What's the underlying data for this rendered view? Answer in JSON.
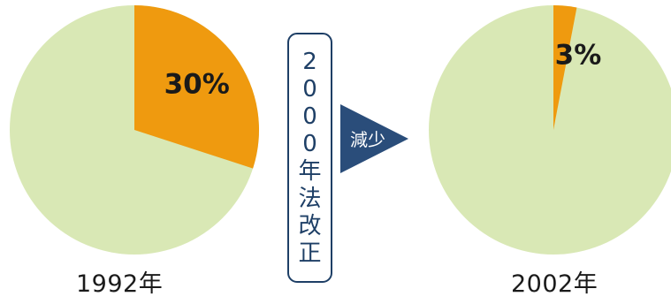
{
  "caption": {
    "law_revision": "2000年法改正",
    "change_label": "減少"
  },
  "colors": {
    "share": "#ef9a0f",
    "rest": "#d9e8b5",
    "arrow": "#2a4d7a",
    "text_dark": "#1a1a1a",
    "law_text": "#1e3f66"
  },
  "chart_data": [
    {
      "type": "pie",
      "xlabel": "1992年",
      "slices": [
        {
          "value": 30,
          "label": "30%"
        },
        {
          "value": 70,
          "label": ""
        }
      ]
    },
    {
      "type": "pie",
      "xlabel": "2002年",
      "slices": [
        {
          "value": 3,
          "label": "3%"
        },
        {
          "value": 97,
          "label": ""
        }
      ]
    }
  ]
}
